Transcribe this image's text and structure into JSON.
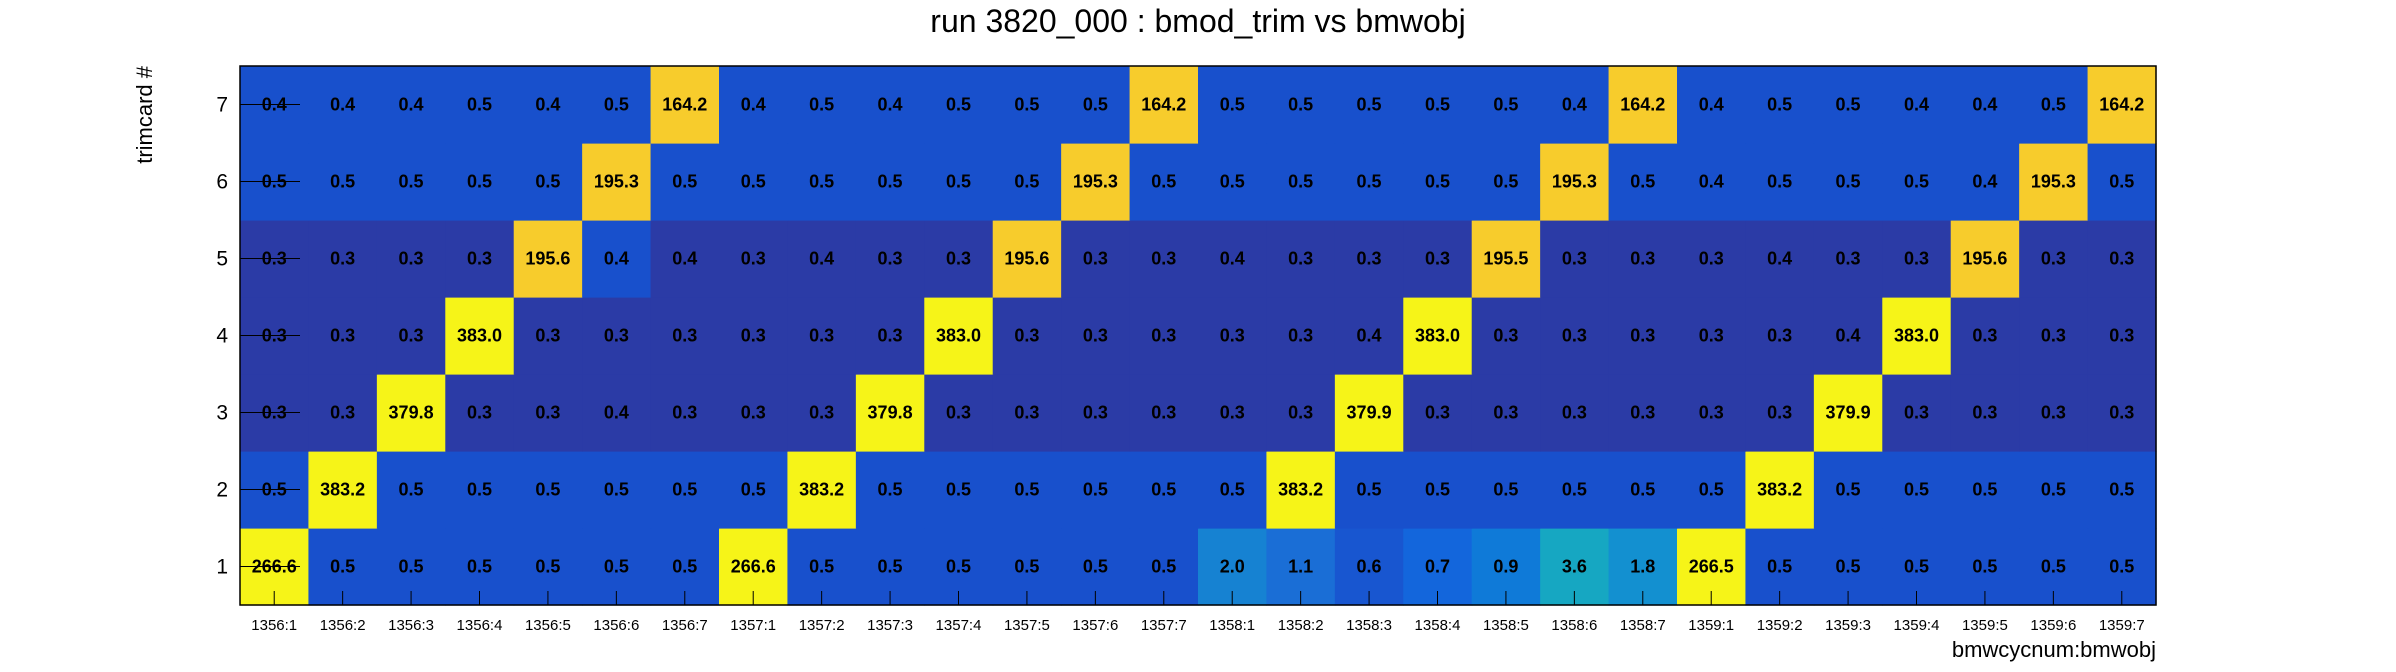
{
  "chart_data": {
    "type": "heatmap",
    "title": "run 3820_000 : bmod_trim vs bmwobj",
    "xlabel": "bmwcycnum:bmwobj",
    "ylabel": "trimcard #",
    "x_categories": [
      "1356:1",
      "1356:2",
      "1356:3",
      "1356:4",
      "1356:5",
      "1356:6",
      "1356:7",
      "1357:1",
      "1357:2",
      "1357:3",
      "1357:4",
      "1357:5",
      "1357:6",
      "1357:7",
      "1358:1",
      "1358:2",
      "1358:3",
      "1358:4",
      "1358:5",
      "1358:6",
      "1358:7",
      "1359:1",
      "1359:2",
      "1359:3",
      "1359:4",
      "1359:5",
      "1359:6",
      "1359:7"
    ],
    "y_categories": [
      "1",
      "2",
      "3",
      "4",
      "5",
      "6",
      "7"
    ],
    "values": [
      [
        266.6,
        0.5,
        0.5,
        0.5,
        0.5,
        0.5,
        0.5,
        266.6,
        0.5,
        0.5,
        0.5,
        0.5,
        0.5,
        0.5,
        2.0,
        1.1,
        0.6,
        0.7,
        0.9,
        3.6,
        1.8,
        266.5,
        0.5,
        0.5,
        0.5,
        0.5,
        0.5,
        0.5
      ],
      [
        0.5,
        383.2,
        0.5,
        0.5,
        0.5,
        0.5,
        0.5,
        0.5,
        383.2,
        0.5,
        0.5,
        0.5,
        0.5,
        0.5,
        0.5,
        383.2,
        0.5,
        0.5,
        0.5,
        0.5,
        0.5,
        0.5,
        383.2,
        0.5,
        0.5,
        0.5,
        0.5,
        0.5
      ],
      [
        0.3,
        0.3,
        379.8,
        0.3,
        0.3,
        0.4,
        0.3,
        0.3,
        0.3,
        379.8,
        0.3,
        0.3,
        0.3,
        0.3,
        0.3,
        0.3,
        379.9,
        0.3,
        0.3,
        0.3,
        0.3,
        0.3,
        0.3,
        379.9,
        0.3,
        0.3,
        0.3,
        0.3
      ],
      [
        0.3,
        0.3,
        0.3,
        383.0,
        0.3,
        0.3,
        0.3,
        0.3,
        0.3,
        0.3,
        383.0,
        0.3,
        0.3,
        0.3,
        0.3,
        0.3,
        0.4,
        383.0,
        0.3,
        0.3,
        0.3,
        0.3,
        0.3,
        0.4,
        383.0,
        0.3,
        0.3,
        0.3
      ],
      [
        0.3,
        0.3,
        0.3,
        0.3,
        195.6,
        0.4,
        0.4,
        0.3,
        0.4,
        0.3,
        0.3,
        195.6,
        0.3,
        0.3,
        0.4,
        0.3,
        0.3,
        0.3,
        195.5,
        0.3,
        0.3,
        0.3,
        0.4,
        0.3,
        0.3,
        195.6,
        0.3,
        0.3
      ],
      [
        0.5,
        0.5,
        0.5,
        0.5,
        0.5,
        195.3,
        0.5,
        0.5,
        0.5,
        0.5,
        0.5,
        0.5,
        195.3,
        0.5,
        0.5,
        0.5,
        0.5,
        0.5,
        0.5,
        195.3,
        0.5,
        0.4,
        0.5,
        0.5,
        0.5,
        0.4,
        195.3,
        0.5
      ],
      [
        0.4,
        0.4,
        0.4,
        0.5,
        0.4,
        0.5,
        164.2,
        0.4,
        0.5,
        0.4,
        0.5,
        0.5,
        0.5,
        164.2,
        0.5,
        0.5,
        0.5,
        0.5,
        0.5,
        0.4,
        164.2,
        0.4,
        0.5,
        0.5,
        0.4,
        0.4,
        0.5,
        164.2
      ]
    ],
    "cell_colors": [
      [
        "#f6f418",
        "#1850cc",
        "#1850cc",
        "#1850cc",
        "#1850cc",
        "#1850cc",
        "#1850cc",
        "#f6f418",
        "#1850cc",
        "#1850cc",
        "#1850cc",
        "#1850cc",
        "#1850cc",
        "#1850cc",
        "#1682d2",
        "#1a6ed6",
        "#1856d0",
        "#1366dc",
        "#0f7ad8",
        "#16a7c2",
        "#1390d0",
        "#f6f418",
        "#1850cc",
        "#1850cc",
        "#1850cc",
        "#1850cc",
        "#1850cc",
        "#1850cc"
      ],
      [
        "#1850cc",
        "#f6f418",
        "#1850cc",
        "#1850cc",
        "#1850cc",
        "#1850cc",
        "#1850cc",
        "#1850cc",
        "#f6f418",
        "#1850cc",
        "#1850cc",
        "#1850cc",
        "#1850cc",
        "#1850cc",
        "#1850cc",
        "#f6f418",
        "#1850cc",
        "#1850cc",
        "#1850cc",
        "#1850cc",
        "#1850cc",
        "#1850cc",
        "#f6f418",
        "#1850cc",
        "#1850cc",
        "#1850cc",
        "#1850cc",
        "#1850cc"
      ],
      [
        "#2b3ba6",
        "#2b3ba6",
        "#f6f418",
        "#2b3ba6",
        "#2b3ba6",
        "#2b3ba6",
        "#2b3ba6",
        "#2b3ba6",
        "#2b3ba6",
        "#f6f418",
        "#2b3ba6",
        "#2b3ba6",
        "#2b3ba6",
        "#2b3ba6",
        "#2b3ba6",
        "#2b3ba6",
        "#f6f418",
        "#2b3ba6",
        "#2b3ba6",
        "#2b3ba6",
        "#2b3ba6",
        "#2b3ba6",
        "#2b3ba6",
        "#f6f418",
        "#2b3ba6",
        "#2b3ba6",
        "#2b3ba6",
        "#2b3ba6"
      ],
      [
        "#2b3ba6",
        "#2b3ba6",
        "#2b3ba6",
        "#f6f418",
        "#2b3ba6",
        "#2b3ba6",
        "#2b3ba6",
        "#2b3ba6",
        "#2b3ba6",
        "#2b3ba6",
        "#f6f418",
        "#2b3ba6",
        "#2b3ba6",
        "#2b3ba6",
        "#2b3ba6",
        "#2b3ba6",
        "#2b3ba6",
        "#f6f418",
        "#2b3ba6",
        "#2b3ba6",
        "#2b3ba6",
        "#2b3ba6",
        "#2b3ba6",
        "#2b3ba6",
        "#f6f418",
        "#2b3ba6",
        "#2b3ba6",
        "#2b3ba6"
      ],
      [
        "#2b3ba6",
        "#2b3ba6",
        "#2b3ba6",
        "#2b3ba6",
        "#f7cc2c",
        "#1850cc",
        "#2b3ba6",
        "#2b3ba6",
        "#2b3ba6",
        "#2b3ba6",
        "#2b3ba6",
        "#f7cc2c",
        "#2b3ba6",
        "#2b3ba6",
        "#2b3ba6",
        "#2b3ba6",
        "#2b3ba6",
        "#2b3ba6",
        "#f7cc2c",
        "#2b3ba6",
        "#2b3ba6",
        "#2b3ba6",
        "#2b3ba6",
        "#2b3ba6",
        "#2b3ba6",
        "#f7cc2c",
        "#2b3ba6",
        "#2b3ba6"
      ],
      [
        "#1850cc",
        "#1850cc",
        "#1850cc",
        "#1850cc",
        "#1850cc",
        "#f7cc2c",
        "#1850cc",
        "#1850cc",
        "#1850cc",
        "#1850cc",
        "#1850cc",
        "#1850cc",
        "#f7cc2c",
        "#1850cc",
        "#1850cc",
        "#1850cc",
        "#1850cc",
        "#1850cc",
        "#1850cc",
        "#f7cc2c",
        "#1850cc",
        "#1850cc",
        "#1850cc",
        "#1850cc",
        "#1850cc",
        "#1850cc",
        "#f7cc2c",
        "#1850cc"
      ],
      [
        "#1850cc",
        "#1850cc",
        "#1850cc",
        "#1850cc",
        "#1850cc",
        "#1850cc",
        "#f7cc2c",
        "#1850cc",
        "#1850cc",
        "#1850cc",
        "#1850cc",
        "#1850cc",
        "#1850cc",
        "#f7cc2c",
        "#1850cc",
        "#1850cc",
        "#1850cc",
        "#1850cc",
        "#1850cc",
        "#1850cc",
        "#f7cc2c",
        "#1850cc",
        "#1850cc",
        "#1850cc",
        "#1850cc",
        "#1850cc",
        "#1850cc",
        "#f7cc2c"
      ]
    ],
    "value_format_decimals": 1,
    "grid": false,
    "legend": "none"
  }
}
